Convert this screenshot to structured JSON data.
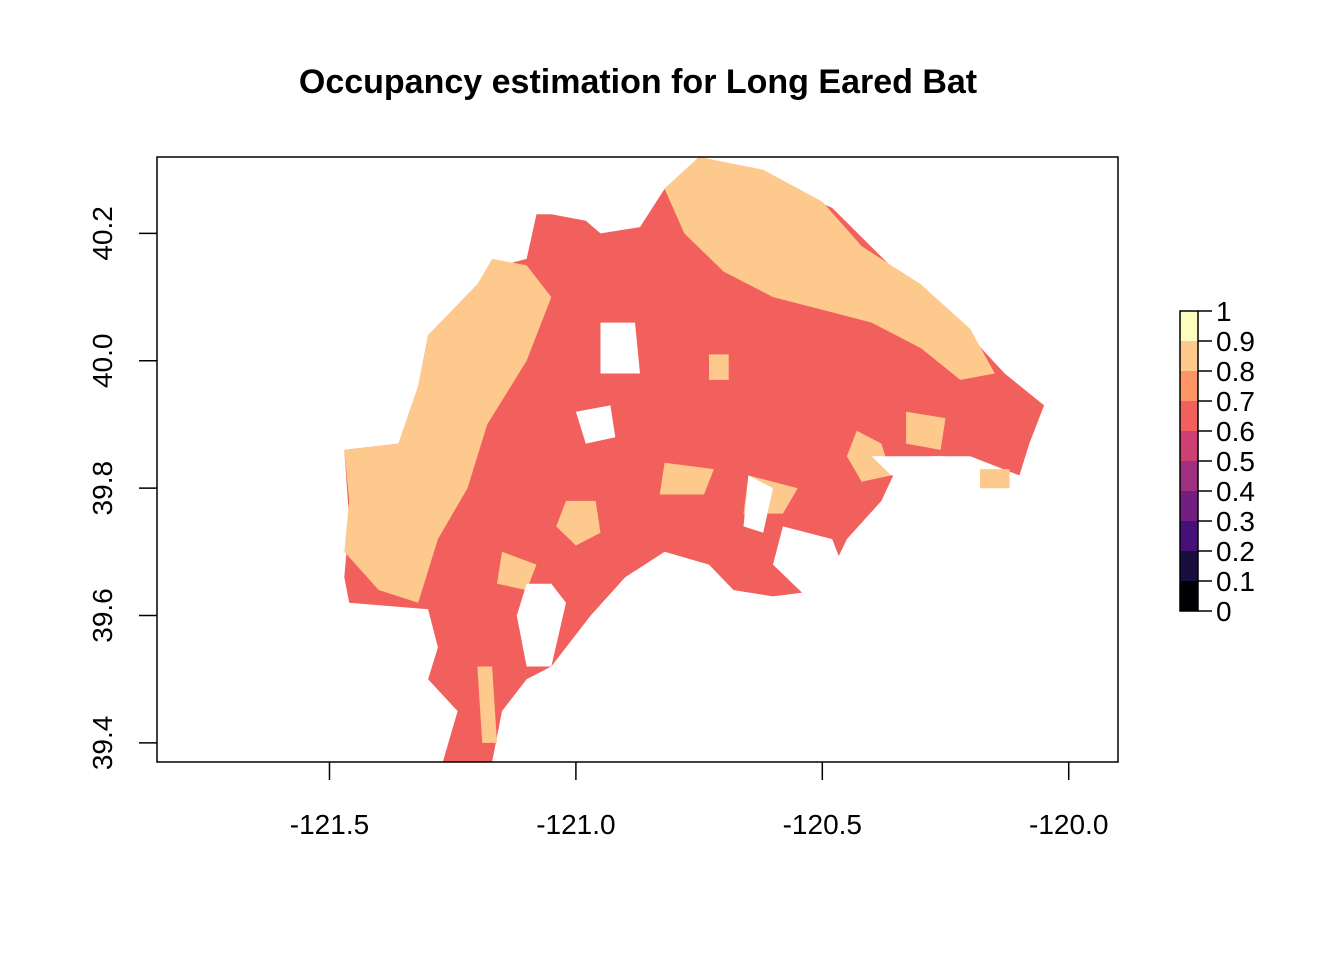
{
  "chart_data": {
    "type": "heatmap",
    "title": "Occupancy estimation for Long Eared Bat",
    "xlabel": "",
    "ylabel": "",
    "xlim": [
      -121.85,
      -119.9
    ],
    "ylim": [
      39.37,
      40.32
    ],
    "x_ticks": [
      -121.5,
      -121.0,
      -120.5,
      -120.0
    ],
    "x_tick_labels": [
      "-121.5",
      "-121.0",
      "-120.5",
      "-120.0"
    ],
    "y_ticks": [
      39.4,
      39.6,
      39.8,
      40.0,
      40.2
    ],
    "y_tick_labels": [
      "39.4",
      "39.6",
      "39.8",
      "40.0",
      "40.2"
    ],
    "grid": false,
    "legend": {
      "placement": "right",
      "breaks": [
        0,
        0.1,
        0.2,
        0.3,
        0.4,
        0.5,
        0.6,
        0.7,
        0.8,
        0.9,
        1
      ],
      "break_labels": [
        "0",
        "0.1",
        "0.2",
        "0.3",
        "0.4",
        "0.5",
        "0.6",
        "0.7",
        "0.8",
        "0.9",
        "1"
      ],
      "colors": [
        "#000004",
        "#180F3E",
        "#451077",
        "#721F81",
        "#9F2F7F",
        "#CD4071",
        "#F1605D",
        "#FD9567",
        "#FEC98D",
        "#FCFDBF"
      ]
    },
    "regions": [
      {
        "occupancy_class": "0.6-0.7",
        "color": "#F1605D",
        "polygon": [
          [
            -121.27,
            39.37
          ],
          [
            -121.24,
            39.45
          ],
          [
            -121.3,
            39.5
          ],
          [
            -121.28,
            39.55
          ],
          [
            -121.3,
            39.61
          ],
          [
            -121.46,
            39.62
          ],
          [
            -121.47,
            39.66
          ],
          [
            -121.46,
            39.75
          ],
          [
            -121.47,
            39.86
          ],
          [
            -121.36,
            39.87
          ],
          [
            -121.32,
            39.96
          ],
          [
            -121.3,
            40.04
          ],
          [
            -121.2,
            40.12
          ],
          [
            -121.15,
            40.15
          ],
          [
            -121.1,
            40.16
          ],
          [
            -121.08,
            40.23
          ],
          [
            -121.05,
            40.23
          ],
          [
            -120.98,
            40.22
          ],
          [
            -120.95,
            40.2
          ],
          [
            -120.87,
            40.21
          ],
          [
            -120.82,
            40.27
          ],
          [
            -120.75,
            40.32
          ],
          [
            -120.6,
            40.28
          ],
          [
            -120.48,
            40.24
          ],
          [
            -120.35,
            40.14
          ],
          [
            -120.25,
            40.08
          ],
          [
            -120.13,
            39.98
          ],
          [
            -120.05,
            39.93
          ],
          [
            -120.08,
            39.87
          ],
          [
            -120.1,
            39.82
          ],
          [
            -120.2,
            39.85
          ],
          [
            -120.28,
            39.85
          ],
          [
            -120.35,
            39.83
          ],
          [
            -120.38,
            39.78
          ],
          [
            -120.45,
            39.72
          ],
          [
            -120.5,
            39.64
          ],
          [
            -120.6,
            39.63
          ],
          [
            -120.68,
            39.64
          ],
          [
            -120.73,
            39.68
          ],
          [
            -120.82,
            39.7
          ],
          [
            -120.9,
            39.66
          ],
          [
            -120.97,
            39.6
          ],
          [
            -121.05,
            39.52
          ],
          [
            -121.1,
            39.5
          ],
          [
            -121.15,
            39.45
          ],
          [
            -121.17,
            39.37
          ]
        ]
      },
      {
        "occupancy_class": "0.8-0.9",
        "color": "#FEC98D",
        "polygon": [
          [
            -121.47,
            39.86
          ],
          [
            -121.36,
            39.87
          ],
          [
            -121.32,
            39.96
          ],
          [
            -121.3,
            40.04
          ],
          [
            -121.2,
            40.12
          ],
          [
            -121.17,
            40.16
          ],
          [
            -121.1,
            40.15
          ],
          [
            -121.05,
            40.1
          ],
          [
            -121.1,
            40.0
          ],
          [
            -121.18,
            39.9
          ],
          [
            -121.22,
            39.8
          ],
          [
            -121.28,
            39.72
          ],
          [
            -121.32,
            39.62
          ],
          [
            -121.4,
            39.64
          ],
          [
            -121.47,
            39.7
          ],
          [
            -121.46,
            39.78
          ]
        ]
      },
      {
        "occupancy_class": "0.8-0.9",
        "color": "#FEC98D",
        "polygon": [
          [
            -120.82,
            40.27
          ],
          [
            -120.75,
            40.32
          ],
          [
            -120.62,
            40.3
          ],
          [
            -120.5,
            40.25
          ],
          [
            -120.42,
            40.18
          ],
          [
            -120.3,
            40.12
          ],
          [
            -120.2,
            40.05
          ],
          [
            -120.15,
            39.98
          ],
          [
            -120.22,
            39.97
          ],
          [
            -120.3,
            40.02
          ],
          [
            -120.4,
            40.06
          ],
          [
            -120.5,
            40.08
          ],
          [
            -120.6,
            40.1
          ],
          [
            -120.7,
            40.14
          ],
          [
            -120.78,
            40.2
          ]
        ]
      },
      {
        "occupancy_class": "0.8-0.9",
        "color": "#FEC98D",
        "polygon": [
          [
            -121.02,
            39.78
          ],
          [
            -120.96,
            39.78
          ],
          [
            -120.95,
            39.73
          ],
          [
            -121.0,
            39.71
          ],
          [
            -121.04,
            39.74
          ]
        ]
      },
      {
        "occupancy_class": "0.8-0.9",
        "color": "#FEC98D",
        "polygon": [
          [
            -120.65,
            39.82
          ],
          [
            -120.55,
            39.8
          ],
          [
            -120.58,
            39.76
          ],
          [
            -120.66,
            39.76
          ]
        ]
      },
      {
        "occupancy_class": "0.8-0.9",
        "color": "#FEC98D",
        "polygon": [
          [
            -120.43,
            39.89
          ],
          [
            -120.38,
            39.87
          ],
          [
            -120.36,
            39.82
          ],
          [
            -120.42,
            39.81
          ],
          [
            -120.45,
            39.85
          ]
        ]
      },
      {
        "occupancy_class": "0.8-0.9",
        "color": "#FEC98D",
        "polygon": [
          [
            -120.33,
            39.92
          ],
          [
            -120.25,
            39.91
          ],
          [
            -120.26,
            39.86
          ],
          [
            -120.33,
            39.87
          ]
        ]
      },
      {
        "occupancy_class": "0.8-0.9",
        "color": "#FEC98D",
        "polygon": [
          [
            -121.15,
            39.7
          ],
          [
            -121.08,
            39.68
          ],
          [
            -121.1,
            39.64
          ],
          [
            -121.16,
            39.65
          ]
        ]
      },
      {
        "occupancy_class": "0.8-0.9",
        "color": "#FEC98D",
        "polygon": [
          [
            -120.82,
            39.84
          ],
          [
            -120.72,
            39.83
          ],
          [
            -120.74,
            39.79
          ],
          [
            -120.83,
            39.79
          ]
        ]
      },
      {
        "occupancy_class": "0.8-0.9",
        "color": "#FEC98D",
        "polygon": [
          [
            -120.73,
            40.01
          ],
          [
            -120.69,
            40.01
          ],
          [
            -120.69,
            39.97
          ],
          [
            -120.73,
            39.97
          ]
        ]
      },
      {
        "occupancy_class": "0.8-0.9",
        "color": "#FEC98D",
        "polygon": [
          [
            -120.18,
            39.83
          ],
          [
            -120.12,
            39.83
          ],
          [
            -120.12,
            39.8
          ],
          [
            -120.18,
            39.8
          ]
        ]
      },
      {
        "occupancy_class": "0.8-0.9",
        "color": "#FEC98D",
        "polygon": [
          [
            -121.2,
            39.52
          ],
          [
            -121.17,
            39.52
          ],
          [
            -121.16,
            39.4
          ],
          [
            -121.19,
            39.4
          ]
        ]
      },
      {
        "occupancy_class": "0.8-0.9",
        "color": "#FEC98D",
        "polygon": [
          [
            -121.34,
            39.78
          ],
          [
            -121.32,
            39.78
          ],
          [
            -121.32,
            39.73
          ],
          [
            -121.34,
            39.73
          ]
        ]
      },
      {
        "occupancy_class": "no data",
        "color": "#FFFFFF",
        "polygon": [
          [
            -121.1,
            39.65
          ],
          [
            -121.05,
            39.65
          ],
          [
            -121.02,
            39.62
          ],
          [
            -121.05,
            39.52
          ],
          [
            -121.1,
            39.52
          ],
          [
            -121.12,
            39.6
          ]
        ]
      },
      {
        "occupancy_class": "no data",
        "color": "#FFFFFF",
        "polygon": [
          [
            -120.95,
            40.06
          ],
          [
            -120.88,
            40.06
          ],
          [
            -120.87,
            39.98
          ],
          [
            -120.95,
            39.98
          ]
        ]
      },
      {
        "occupancy_class": "no data",
        "color": "#FFFFFF",
        "polygon": [
          [
            -121.0,
            39.92
          ],
          [
            -120.93,
            39.93
          ],
          [
            -120.92,
            39.88
          ],
          [
            -120.98,
            39.87
          ]
        ]
      },
      {
        "occupancy_class": "no data",
        "color": "#FFFFFF",
        "polygon": [
          [
            -120.65,
            39.82
          ],
          [
            -120.6,
            39.8
          ],
          [
            -120.62,
            39.73
          ],
          [
            -120.66,
            39.74
          ]
        ]
      },
      {
        "occupancy_class": "no data",
        "color": "#FFFFFF",
        "polygon": [
          [
            -120.58,
            39.74
          ],
          [
            -120.48,
            39.72
          ],
          [
            -120.44,
            39.64
          ],
          [
            -120.52,
            39.62
          ],
          [
            -120.6,
            39.68
          ]
        ]
      },
      {
        "occupancy_class": "no data",
        "color": "#FFFFFF",
        "polygon": [
          [
            -120.4,
            39.85
          ],
          [
            -120.25,
            39.85
          ],
          [
            -120.18,
            39.82
          ],
          [
            -120.36,
            39.82
          ]
        ]
      }
    ]
  }
}
